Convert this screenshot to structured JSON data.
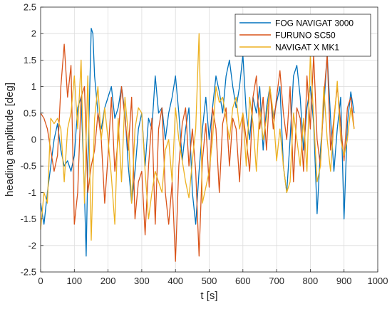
{
  "chart_data": {
    "type": "line",
    "title": "",
    "xlabel": "t [s]",
    "ylabel": "heading amplitude [deg]",
    "xlim": [
      0,
      1000
    ],
    "ylim": [
      -2.5,
      2.5
    ],
    "xticks": [
      "0",
      "100",
      "200",
      "300",
      "400",
      "500",
      "600",
      "700",
      "800",
      "900",
      "1000"
    ],
    "yticks": [
      "-2.5",
      "-2",
      "-1.5",
      "-1",
      "-0.5",
      "0",
      "0.5",
      "1",
      "1.5",
      "2",
      "2.5"
    ],
    "grid": true,
    "legend_position": "top-right",
    "series": [
      {
        "name": "FOG NAVIGAT 3000",
        "color": "#0072BD",
        "x": [
          0,
          10,
          20,
          30,
          40,
          50,
          60,
          70,
          80,
          90,
          100,
          110,
          120,
          130,
          135,
          140,
          150,
          155,
          160,
          170,
          180,
          190,
          200,
          210,
          220,
          230,
          240,
          250,
          260,
          270,
          280,
          290,
          300,
          310,
          320,
          330,
          340,
          350,
          360,
          370,
          380,
          390,
          400,
          410,
          420,
          430,
          440,
          450,
          460,
          470,
          480,
          490,
          500,
          510,
          520,
          530,
          540,
          550,
          560,
          570,
          580,
          590,
          600,
          610,
          620,
          630,
          640,
          650,
          660,
          670,
          680,
          690,
          700,
          710,
          720,
          730,
          740,
          750,
          760,
          770,
          780,
          790,
          800,
          810,
          820,
          830,
          840,
          850,
          860,
          870,
          880,
          890,
          900,
          910,
          920,
          930
        ],
        "y": [
          -1.2,
          -1.6,
          -1.0,
          -0.5,
          0.0,
          0.3,
          -0.2,
          -0.5,
          -0.4,
          -0.6,
          -0.3,
          0.6,
          0.8,
          -1.0,
          -2.2,
          -0.5,
          2.1,
          2.0,
          1.2,
          0.5,
          0.2,
          0.6,
          0.8,
          1.0,
          0.4,
          0.6,
          1.0,
          0.5,
          -0.5,
          -1.2,
          -0.6,
          0.2,
          0.5,
          -0.5,
          0.4,
          0.2,
          1.2,
          0.5,
          0.6,
          0.0,
          0.5,
          0.8,
          1.2,
          0.5,
          -0.4,
          0.2,
          0.6,
          -1.0,
          -1.6,
          -0.6,
          0.2,
          0.8,
          0.0,
          0.6,
          1.2,
          0.9,
          0.5,
          1.2,
          1.5,
          1.0,
          0.6,
          1.0,
          1.6,
          0.5,
          0.0,
          0.8,
          0.5,
          1.0,
          -0.2,
          0.6,
          1.0,
          0.4,
          0.7,
          1.0,
          -0.5,
          -1.0,
          0.0,
          1.2,
          1.4,
          0.8,
          -0.2,
          0.6,
          1.0,
          0.3,
          -1.4,
          -0.2,
          0.6,
          1.6,
          0.4,
          -0.6,
          0.2,
          0.8,
          -1.5,
          0.3,
          0.9,
          0.5
        ]
      },
      {
        "name": "FURUNO SC50",
        "color": "#D95319",
        "x": [
          0,
          10,
          20,
          30,
          40,
          50,
          60,
          70,
          80,
          90,
          100,
          110,
          120,
          130,
          140,
          150,
          160,
          170,
          180,
          190,
          200,
          210,
          220,
          230,
          240,
          250,
          260,
          270,
          280,
          290,
          300,
          310,
          320,
          330,
          340,
          350,
          360,
          370,
          380,
          390,
          400,
          410,
          420,
          430,
          440,
          450,
          460,
          470,
          480,
          490,
          500,
          510,
          520,
          530,
          540,
          550,
          560,
          570,
          580,
          590,
          600,
          610,
          620,
          630,
          640,
          650,
          660,
          670,
          680,
          690,
          700,
          710,
          720,
          730,
          740,
          750,
          760,
          770,
          780,
          790,
          800,
          810,
          820,
          830,
          840,
          850,
          860,
          870,
          880,
          890,
          900,
          910,
          920,
          930
        ],
        "y": [
          0.5,
          0.4,
          0.2,
          -0.2,
          -0.6,
          -0.3,
          1.0,
          1.8,
          0.8,
          1.4,
          -1.6,
          -1.0,
          0.8,
          1.0,
          -1.0,
          -0.5,
          -0.2,
          0.5,
          0.0,
          -1.2,
          -0.3,
          0.8,
          -0.6,
          0.0,
          1.0,
          0.4,
          -0.2,
          0.8,
          -1.5,
          -0.8,
          -0.6,
          -1.8,
          -0.5,
          0.4,
          -1.6,
          0.2,
          0.6,
          -1.0,
          -1.6,
          -0.8,
          -2.3,
          -0.5,
          0.3,
          0.6,
          -0.5,
          0.2,
          -0.6,
          -2.2,
          -0.4,
          0.3,
          -0.9,
          0.6,
          0.2,
          -1.0,
          0.3,
          0.6,
          -0.5,
          0.4,
          0.2,
          -0.8,
          0.5,
          0.0,
          -0.6,
          0.8,
          1.2,
          0.2,
          0.8,
          -0.2,
          1.0,
          0.2,
          0.8,
          1.3,
          0.5,
          0.0,
          1.0,
          -0.8,
          0.6,
          0.4,
          -0.6,
          1.2,
          0.2,
          1.6,
          0.0,
          -0.5,
          0.8,
          1.6,
          -0.2,
          0.4,
          1.0,
          0.3,
          -0.4,
          0.6,
          0.8,
          0.2
        ]
      },
      {
        "name": "NAVIGAT X MK1",
        "color": "#EDB120",
        "x": [
          0,
          10,
          20,
          30,
          40,
          50,
          60,
          70,
          80,
          90,
          100,
          110,
          120,
          130,
          140,
          150,
          160,
          170,
          180,
          190,
          200,
          210,
          220,
          230,
          240,
          250,
          260,
          270,
          280,
          290,
          300,
          310,
          320,
          330,
          340,
          350,
          360,
          370,
          380,
          390,
          400,
          410,
          420,
          430,
          440,
          450,
          460,
          470,
          480,
          490,
          500,
          510,
          520,
          530,
          540,
          550,
          560,
          570,
          580,
          590,
          600,
          610,
          620,
          630,
          640,
          650,
          660,
          670,
          680,
          690,
          700,
          710,
          720,
          730,
          740,
          750,
          760,
          770,
          780,
          790,
          800,
          810,
          820,
          830,
          840,
          850,
          860,
          870,
          880,
          890,
          900,
          910,
          920,
          930
        ],
        "y": [
          -1.7,
          -1.0,
          -1.2,
          0.4,
          0.3,
          0.4,
          0.2,
          -0.8,
          0.2,
          0.5,
          1.2,
          0.2,
          1.5,
          -1.2,
          1.2,
          -1.9,
          0.4,
          1.0,
          0.0,
          0.6,
          0.0,
          -0.7,
          -1.6,
          0.4,
          -0.8,
          0.8,
          0.1,
          -1.2,
          0.2,
          0.6,
          0.5,
          -0.6,
          -1.5,
          -1.0,
          -0.6,
          -0.8,
          -1.0,
          -0.2,
          0.0,
          -0.8,
          0.6,
          0.0,
          -0.4,
          -0.8,
          -1.1,
          -0.4,
          0.2,
          2.0,
          -1.2,
          -0.9,
          -0.6,
          0.0,
          1.0,
          0.7,
          0.8,
          0.4,
          0.0,
          0.6,
          0.8,
          0.2,
          0.5,
          -0.5,
          0.8,
          0.3,
          -0.6,
          0.6,
          0.0,
          0.4,
          1.0,
          0.5,
          -0.4,
          0.2,
          -0.5,
          -1.0,
          -0.8,
          0.5,
          0.0,
          -0.5,
          0.4,
          -0.6,
          1.6,
          0.4,
          -0.8,
          -0.5,
          1.0,
          0.0,
          -0.6,
          0.3,
          1.1,
          0.0,
          -0.3,
          0.0,
          0.6,
          0.2
        ]
      }
    ]
  }
}
